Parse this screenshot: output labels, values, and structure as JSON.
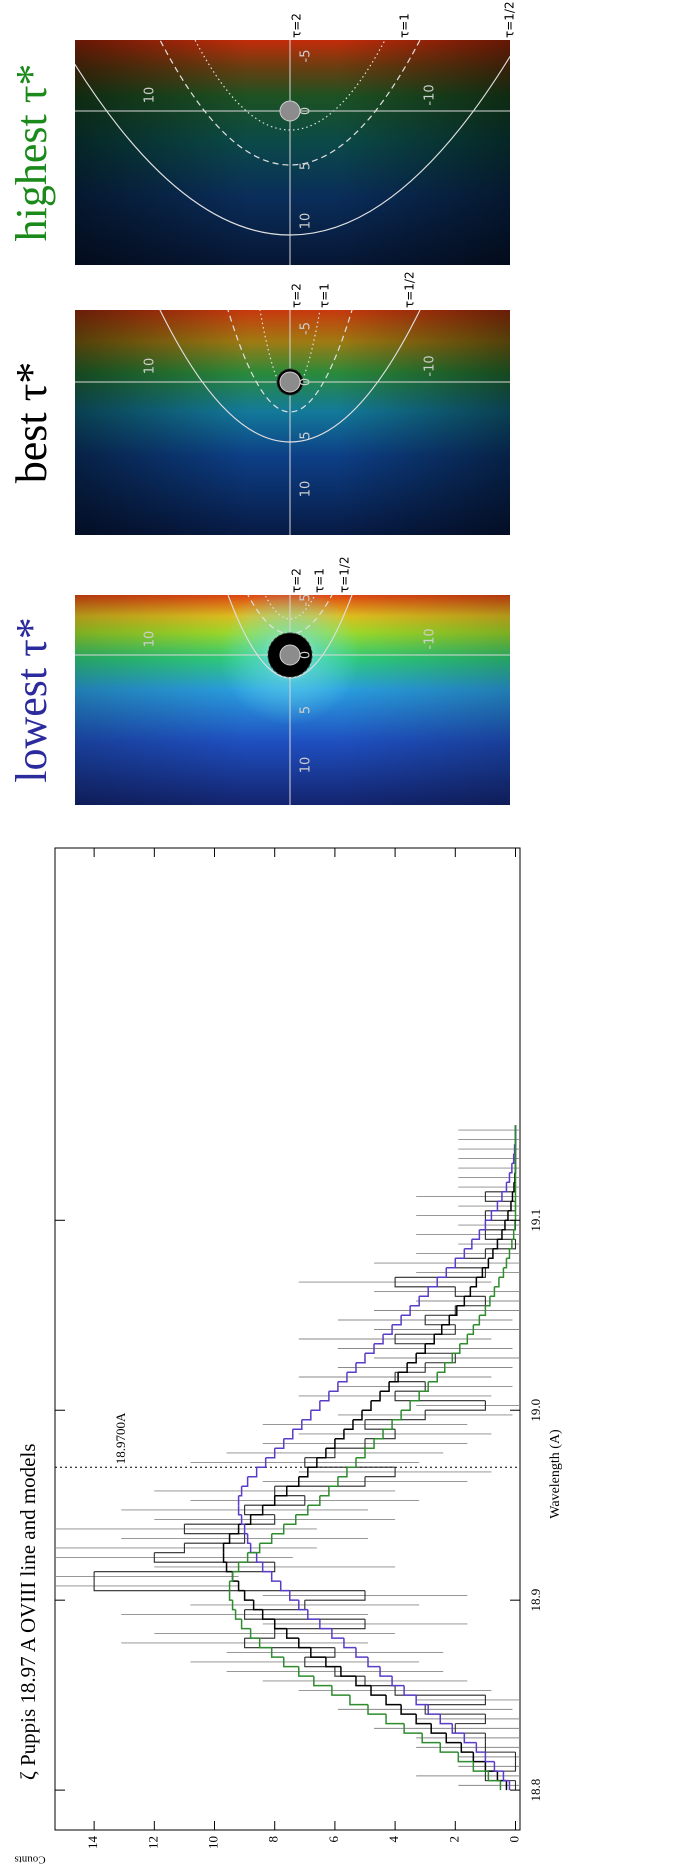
{
  "chart_data": {
    "type": "histogram",
    "title": "ζ Puppis 18.97 A OVIII line and models",
    "xlabel": "Wavelength (A)",
    "ylabel": "Counts",
    "bins": [
      18.8,
      18.805,
      18.81,
      18.815,
      18.82,
      18.825,
      18.83,
      18.835,
      18.84,
      18.845,
      18.85,
      18.855,
      18.86,
      18.865,
      18.87,
      18.875,
      18.88,
      18.885,
      18.89,
      18.895,
      18.9,
      18.905,
      18.91,
      18.915,
      18.92,
      18.925,
      18.93,
      18.935,
      18.94,
      18.945,
      18.95,
      18.955,
      18.96,
      18.965,
      18.97,
      18.975,
      18.98,
      18.985,
      18.99,
      18.995,
      19,
      19.005,
      19.01,
      19.015,
      19.02,
      19.025,
      19.03,
      19.035,
      19.04,
      19.045,
      19.05,
      19.055,
      19.06,
      19.065,
      19.07,
      19.075,
      19.08,
      19.085,
      19.09,
      19.095,
      19.1,
      19.105,
      19.11,
      19.115,
      19.12,
      19.125,
      19.13,
      19.135,
      19.14,
      19.145,
      19.15
    ],
    "xlim": [
      18.779,
      19.296
    ],
    "ylim": [
      -0.15,
      15.3
    ],
    "xticks": [
      18.8,
      18.9,
      {
        "value": 19,
        "label": "19.0"
      },
      19.1
    ],
    "yticks": [
      0,
      2,
      4,
      6,
      8,
      10,
      12,
      14
    ],
    "annotations": [
      {
        "x": 18.97,
        "text": "18.9700A"
      }
    ],
    "series": [
      {
        "color": "#2a2a2a",
        "values": [
          0,
          1,
          0,
          0,
          1,
          1,
          2,
          1,
          3,
          1,
          4,
          5,
          6,
          7,
          6,
          9,
          8,
          5,
          9,
          7,
          5,
          14,
          14,
          8,
          12,
          11,
          9,
          11,
          8,
          9,
          7,
          8,
          5,
          4,
          7,
          6,
          5,
          4,
          5,
          3,
          1,
          4,
          3,
          4,
          3,
          2,
          3,
          4,
          2,
          3,
          2,
          1,
          2,
          4,
          1,
          2,
          1,
          0,
          1,
          0,
          1,
          0,
          1,
          0,
          0,
          0,
          0,
          0,
          0,
          0
        ],
        "errors": [
          1.9,
          2.3,
          1.9,
          1.9,
          2.3,
          2.3,
          2.7,
          2.3,
          2.9,
          2.3,
          3.2,
          3.4,
          3.6,
          3.8,
          3.6,
          4.1,
          4.0,
          3.4,
          4.1,
          3.8,
          3.4,
          4.8,
          4.8,
          4.0,
          4.6,
          4.4,
          4.1,
          4.4,
          4.0,
          4.1,
          3.8,
          4.0,
          3.4,
          3.2,
          3.8,
          3.6,
          3.4,
          3.2,
          3.4,
          2.9,
          2.3,
          3.2,
          2.9,
          3.2,
          2.9,
          2.7,
          2.9,
          3.2,
          2.7,
          2.9,
          2.7,
          2.3,
          2.7,
          3.2,
          2.3,
          2.7,
          2.3,
          1.9,
          2.3,
          1.9,
          2.3,
          1.9,
          2.3,
          1.9,
          1.9,
          1.9,
          1.9,
          1.9,
          1.9,
          1.9
        ]
      },
      {
        "color": "#000000",
        "values": [
          0.3,
          0.6,
          1.0,
          1.4,
          1.8,
          2.3,
          2.8,
          3.3,
          3.8,
          4.3,
          4.8,
          5.3,
          5.8,
          6.3,
          6.8,
          7.2,
          7.6,
          8.0,
          8.4,
          8.7,
          9.0,
          9.2,
          9.4,
          9.6,
          9.7,
          9.7,
          9.5,
          9.2,
          8.8,
          8.4,
          8.0,
          7.6,
          7.2,
          6.9,
          6.6,
          6.3,
          6.0,
          5.7,
          5.4,
          5.1,
          4.8,
          4.5,
          4.2,
          3.9,
          3.6,
          3.3,
          3.0,
          2.7,
          2.45,
          2.2,
          1.95,
          1.7,
          1.5,
          1.3,
          1.1,
          0.9,
          0.75,
          0.6,
          0.45,
          0.35,
          0.25,
          0.15,
          0.1,
          0.05,
          0.02,
          0,
          0,
          0,
          0,
          0
        ]
      },
      {
        "color": "#5a3cc8",
        "values": [
          0.2,
          0.4,
          0.7,
          1.0,
          1.3,
          1.7,
          2.1,
          2.5,
          2.9,
          3.3,
          3.7,
          4.1,
          4.5,
          4.9,
          5.3,
          5.7,
          6.1,
          6.5,
          6.9,
          7.2,
          7.5,
          7.8,
          8.1,
          8.4,
          8.6,
          8.8,
          8.9,
          9.0,
          9.1,
          9.2,
          9.2,
          9.1,
          8.9,
          8.6,
          8.3,
          8.0,
          7.7,
          7.4,
          7.1,
          6.8,
          6.5,
          6.2,
          5.9,
          5.6,
          5.3,
          5.0,
          4.7,
          4.4,
          4.1,
          3.8,
          3.5,
          3.2,
          2.9,
          2.6,
          2.3,
          2.0,
          1.7,
          1.45,
          1.2,
          1.0,
          0.8,
          0.6,
          0.45,
          0.3,
          0.2,
          0.12,
          0.06,
          0.03,
          0,
          0
        ]
      },
      {
        "color": "#2e8b2e",
        "values": [
          0.5,
          0.9,
          1.4,
          1.9,
          2.5,
          3.1,
          3.7,
          4.3,
          4.9,
          5.5,
          6.1,
          6.7,
          7.2,
          7.7,
          8.1,
          8.5,
          8.8,
          9.1,
          9.3,
          9.4,
          9.5,
          9.5,
          9.4,
          9.2,
          8.9,
          8.5,
          8.1,
          7.7,
          7.3,
          6.9,
          6.5,
          6.2,
          5.9,
          5.6,
          5.3,
          5.0,
          4.7,
          4.4,
          4.1,
          3.8,
          3.5,
          3.2,
          2.9,
          2.6,
          2.35,
          2.1,
          1.85,
          1.6,
          1.4,
          1.2,
          1.0,
          0.85,
          0.7,
          0.55,
          0.4,
          0.3,
          0.2,
          0.12,
          0.06,
          0.02,
          0,
          0,
          0,
          0,
          0,
          0,
          0,
          0,
          0,
          0
        ]
      }
    ]
  },
  "panels": [
    {
      "label": "lowest τ*",
      "color": "#2b2b9e",
      "xticks": [
        10,
        5,
        0,
        -5
      ],
      "yticks": [
        10,
        -10
      ],
      "contours": [
        "τ=2",
        "τ=1",
        "τ=1/2"
      ]
    },
    {
      "label": "best τ*",
      "color": "#000000",
      "xticks": [
        10,
        5,
        0,
        -5
      ],
      "yticks": [
        10,
        -10
      ],
      "contours": [
        "τ=2",
        "τ=1",
        "τ=1/2"
      ]
    },
    {
      "label": "highest τ*",
      "color": "#1a8a1a",
      "xticks": [
        10,
        5,
        0,
        -5
      ],
      "yticks": [
        10,
        -10
      ],
      "contours": [
        "τ=2",
        "τ=1",
        "τ=1/2"
      ]
    }
  ]
}
